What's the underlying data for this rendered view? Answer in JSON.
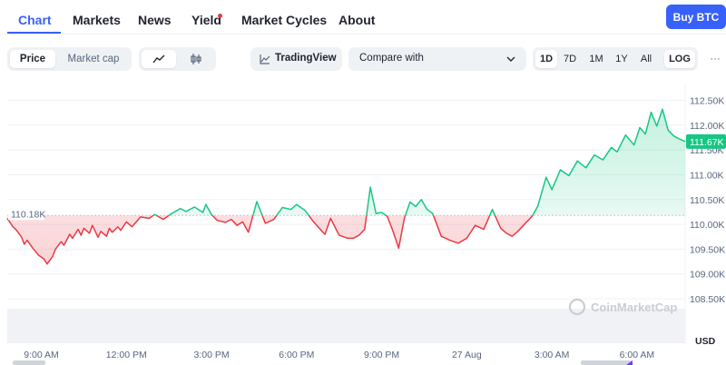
{
  "nav": {
    "tabs": [
      "Chart",
      "Markets",
      "News",
      "Yield",
      "Market Cycles",
      "About"
    ],
    "buy_label": "Buy BTC"
  },
  "toolbar": {
    "price_label": "Price",
    "marketcap_label": "Market cap",
    "tradingview_label": "TradingView",
    "compare_label": "Compare with",
    "ranges": [
      "1D",
      "7D",
      "1M",
      "1Y",
      "All",
      "LOG"
    ],
    "more_label": "···",
    "selected_range": "1D"
  },
  "watermark": "CoinMarketCap",
  "chart_data": {
    "type": "line",
    "currency_label": "USD",
    "baseline_label": "110.18K",
    "baseline": 110.18,
    "current_label": "111.67K",
    "ylim": [
      108.3,
      112.82
    ],
    "y_ticks": [
      "112.50K",
      "112.00K",
      "111.50K",
      "111.00K",
      "110.50K",
      "110.00K",
      "109.50K",
      "109.00K",
      "108.50K"
    ],
    "y_tick_values": [
      112.5,
      112.0,
      111.5,
      111.0,
      110.5,
      110.0,
      109.5,
      109.0,
      108.5
    ],
    "x_ticks": [
      "9:00 AM",
      "12:00 PM",
      "3:00 PM",
      "6:00 PM",
      "9:00 PM",
      "27 Aug",
      "3:00 AM",
      "6:00 AM"
    ],
    "x_tick_hours": [
      9,
      12,
      15,
      18,
      21,
      24,
      27,
      30
    ],
    "xlim_hours": [
      7.8,
      31.7
    ],
    "colors": {
      "up": "#16c784",
      "down": "#ea3943",
      "baseline": "#c5c9d2"
    },
    "series": [
      {
        "x": [
          7.8,
          8.0,
          8.1,
          8.3,
          8.4,
          8.5,
          8.7,
          8.8,
          8.9,
          9.1,
          9.2,
          9.4,
          9.5,
          9.7,
          9.8,
          10.0,
          10.1,
          10.3,
          10.4,
          10.5,
          10.7,
          10.8,
          11.0,
          11.1,
          11.3,
          11.4,
          11.5,
          11.7,
          11.8,
          12.0,
          12.2,
          12.5,
          12.8,
          13.0,
          13.3,
          13.6,
          13.9,
          14.1,
          14.4,
          14.7,
          14.8,
          15.0,
          15.2,
          15.5,
          15.7,
          15.9,
          16.1,
          16.3,
          16.6,
          16.9,
          17.2,
          17.5,
          17.8,
          18.0,
          18.3,
          18.6,
          18.9,
          19.0,
          19.2,
          19.5,
          19.8,
          20.0,
          20.2,
          20.4,
          20.6,
          20.8,
          21.0,
          21.2,
          21.4,
          21.6,
          21.8,
          22.0,
          22.2,
          22.4,
          22.6,
          22.8,
          23.1,
          23.4,
          23.7,
          24.0,
          24.3,
          24.6,
          24.9,
          25.2,
          25.4,
          25.6,
          25.8,
          26.0,
          26.3,
          26.5,
          26.8,
          27.0,
          27.3,
          27.6,
          27.9,
          28.2,
          28.5,
          28.8,
          29.1,
          29.3,
          29.6,
          29.9,
          30.1,
          30.3,
          30.5,
          30.7,
          30.9,
          31.1,
          31.3,
          31.5,
          31.7
        ],
        "values": [
          110.12,
          109.95,
          109.9,
          109.75,
          109.6,
          109.68,
          109.52,
          109.45,
          109.38,
          109.3,
          109.2,
          109.35,
          109.5,
          109.65,
          109.58,
          109.8,
          109.72,
          109.9,
          109.78,
          109.92,
          109.82,
          109.98,
          109.74,
          109.86,
          109.76,
          109.92,
          109.84,
          109.95,
          109.88,
          110.05,
          109.95,
          110.15,
          110.12,
          110.2,
          110.1,
          110.22,
          110.32,
          110.26,
          110.35,
          110.24,
          110.4,
          110.2,
          110.08,
          110.04,
          110.1,
          109.98,
          110.05,
          109.84,
          110.46,
          110.02,
          110.1,
          110.34,
          110.3,
          110.4,
          110.28,
          110.05,
          109.86,
          109.8,
          110.12,
          109.78,
          109.72,
          109.72,
          109.78,
          109.9,
          110.75,
          110.22,
          110.24,
          110.16,
          109.86,
          109.52,
          110.12,
          110.45,
          110.36,
          110.5,
          110.3,
          110.22,
          109.76,
          109.68,
          109.62,
          109.72,
          109.98,
          109.9,
          110.3,
          109.92,
          109.82,
          109.76,
          109.86,
          109.98,
          110.16,
          110.36,
          110.95,
          110.7,
          111.1,
          110.98,
          111.28,
          111.14,
          111.4,
          111.3,
          111.55,
          111.46,
          111.8,
          111.6,
          111.95,
          111.82,
          112.26,
          111.98,
          112.32,
          111.9,
          111.78,
          111.72,
          111.67
        ]
      }
    ]
  }
}
